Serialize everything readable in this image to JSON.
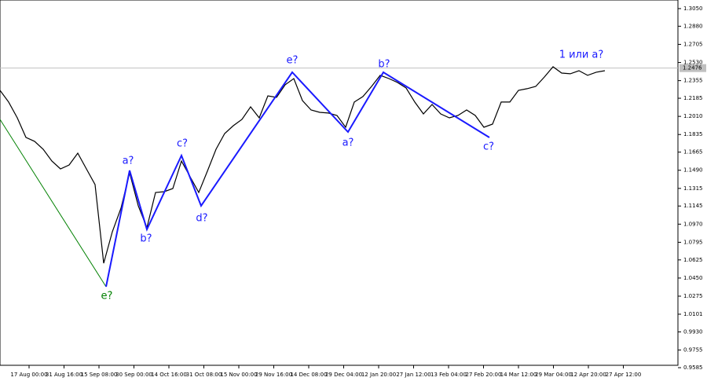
{
  "chart_data": {
    "type": "line",
    "ylim": [
      0.9608,
      1.3133
    ],
    "yticks": [
      {
        "value": 1.305,
        "label": "1.3050"
      },
      {
        "value": 1.288,
        "label": "1.2880"
      },
      1.2705,
      {
        "value": 1.253,
        "label": "1.2530"
      },
      1.2355,
      1.2185,
      {
        "value": 1.201,
        "label": "1.2010"
      },
      1.1835,
      1.1665,
      {
        "value": 1.149,
        "label": "1.1490"
      },
      1.1315,
      1.1145,
      {
        "value": 1.097,
        "label": "1.0970"
      },
      1.0795,
      1.0625,
      {
        "value": 1.045,
        "label": "1.0450"
      },
      1.0275,
      1.0101,
      {
        "value": 0.993,
        "label": "0.9930"
      },
      0.9755,
      0.9585
    ],
    "x_tick_labels": [
      "17 Aug 00:00",
      "31 Aug 16:00",
      "15 Sep 08:00",
      "30 Sep 00:00",
      "14 Oct 16:00",
      "31 Oct 08:00",
      "15 Nov 00:00",
      "29 Nov 16:00",
      "14 Dec 08:00",
      "29 Dec 04:00",
      "12 Jan 20:00",
      "27 Jan 12:00",
      "13 Feb 04:00",
      "27 Feb 20:00",
      "14 Mar 12:00",
      "29 Mar 04:00",
      "12 Apr 20:00",
      "27 Apr 12:00"
    ],
    "current_price": 1.2476,
    "current_price_color": "#c0c0c0",
    "series": [
      {
        "color": "#000000",
        "values": [
          1.2261,
          1.2148,
          1.1996,
          1.1807,
          1.1769,
          1.1693,
          1.1579,
          1.1503,
          1.1541,
          1.1655,
          1.1503,
          1.1352,
          1.0593,
          1.0897,
          1.1124,
          1.1465,
          1.1147,
          1.0935,
          1.1276,
          1.1283,
          1.1314,
          1.1579,
          1.1427,
          1.1276,
          1.1481,
          1.1693,
          1.1844,
          1.192,
          1.1981,
          1.2102,
          1.1996,
          1.2208,
          1.2193,
          1.2315,
          1.2375,
          1.2163,
          1.2072,
          1.2049,
          1.2042,
          1.2019,
          1.1905,
          1.2148,
          1.2201,
          1.2299,
          1.2406,
          1.2375,
          1.2337,
          1.2284,
          1.2148,
          1.2034,
          1.2125,
          1.2034,
          1.1996,
          1.2019,
          1.2072,
          1.2019,
          1.1905,
          1.1935,
          1.2148,
          1.2148,
          1.2261,
          1.2277,
          1.2299,
          1.239,
          1.2489,
          1.2428,
          1.2421,
          1.2451,
          1.2406,
          1.2436,
          1.2451
        ]
      }
    ],
    "annotations": [
      {
        "text": "e?",
        "color": "#008000"
      },
      {
        "text": "a?",
        "color": "#1a1aff"
      },
      {
        "text": "b?",
        "color": "#1a1aff"
      },
      {
        "text": "c?",
        "color": "#1a1aff"
      },
      {
        "text": "d?",
        "color": "#1a1aff"
      },
      {
        "text": "e?",
        "color": "#1a1aff"
      },
      {
        "text": "a?",
        "color": "#1a1aff"
      },
      {
        "text": "b?",
        "color": "#1a1aff"
      },
      {
        "text": "c?",
        "color": "#1a1aff"
      },
      {
        "text": "1 или a?",
        "color": "#1a1aff"
      }
    ],
    "wave_color": "#1a1aff",
    "prior_wave_color": "#008000"
  }
}
